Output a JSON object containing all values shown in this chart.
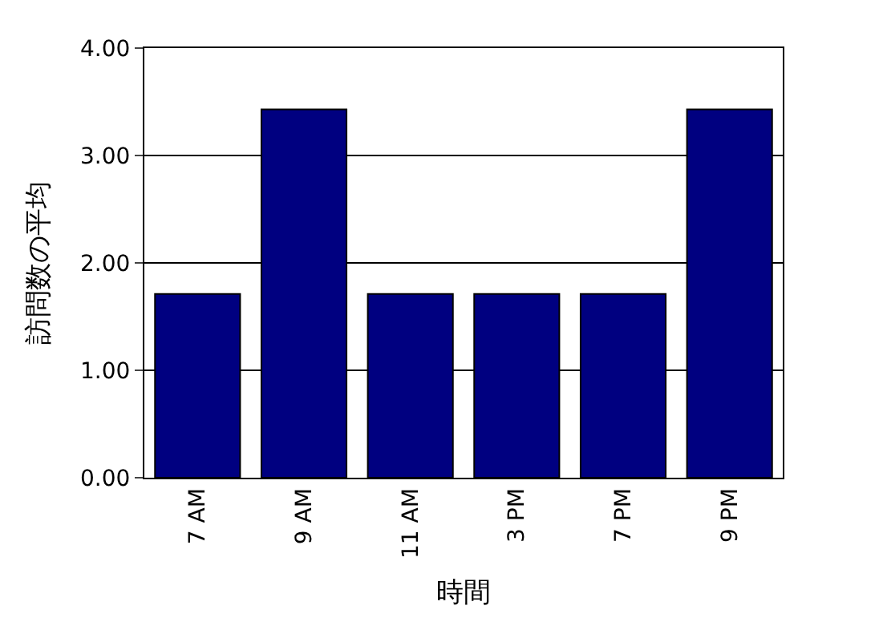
{
  "chart_data": {
    "type": "bar",
    "xlabel": "時間",
    "ylabel": "訪問数の平均",
    "categories": [
      "7 AM",
      "9 AM",
      "11 AM",
      "3 PM",
      "7 PM",
      "9 PM"
    ],
    "values": [
      1.71,
      3.43,
      1.71,
      1.71,
      1.71,
      3.43
    ],
    "color": "#000080",
    "ylim": [
      0,
      4
    ],
    "yticks": [
      {
        "value": 0,
        "label": "0.00"
      },
      {
        "value": 1,
        "label": "1.00"
      },
      {
        "value": 2,
        "label": "2.00"
      },
      {
        "value": 3,
        "label": "3.00"
      },
      {
        "value": 4,
        "label": "4.00"
      }
    ],
    "grid": "y",
    "legend": false
  }
}
